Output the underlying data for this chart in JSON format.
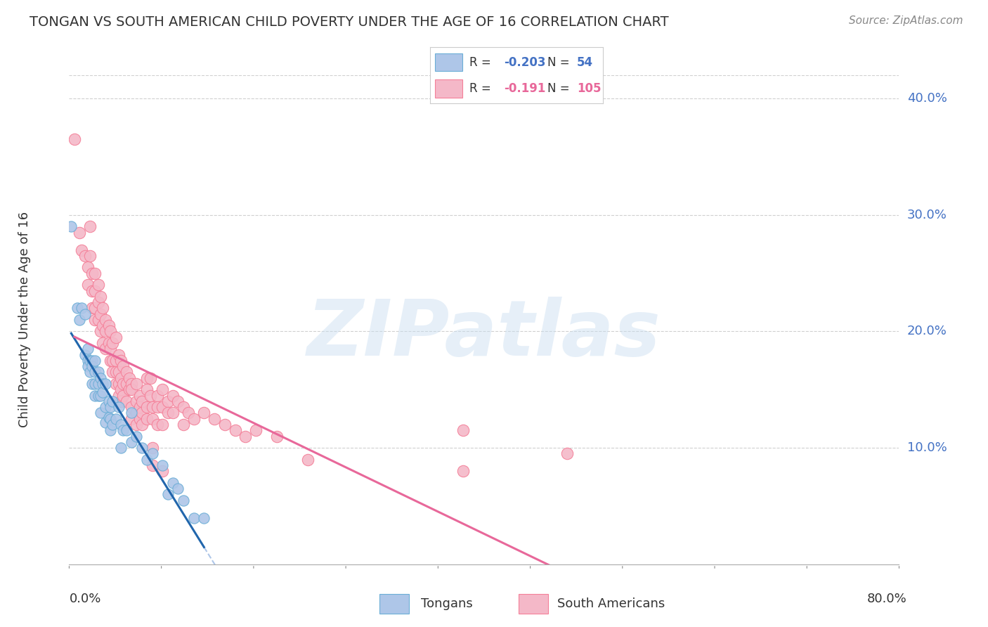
{
  "title": "TONGAN VS SOUTH AMERICAN CHILD POVERTY UNDER THE AGE OF 16 CORRELATION CHART",
  "source": "Source: ZipAtlas.com",
  "ylabel": "Child Poverty Under the Age of 16",
  "ytick_labels": [
    "40.0%",
    "30.0%",
    "20.0%",
    "10.0%"
  ],
  "ytick_values": [
    0.4,
    0.3,
    0.2,
    0.1
  ],
  "xmin": 0.0,
  "xmax": 0.8,
  "ymin": 0.0,
  "ymax": 0.42,
  "watermark_text": "ZIPatlas",
  "tongans_color": "#6baed6",
  "tongans_fill": "#aec6e8",
  "south_americans_color": "#f48099",
  "south_americans_fill": "#f4b8c8",
  "tongans_trendline_color": "#2166ac",
  "south_americans_trendline_color": "#e8689a",
  "dashed_trendline_color": "#aec6e8",
  "background_color": "#ffffff",
  "grid_color": "#d0d0d0",
  "tongans_data": [
    [
      0.002,
      0.29
    ],
    [
      0.008,
      0.22
    ],
    [
      0.01,
      0.21
    ],
    [
      0.012,
      0.22
    ],
    [
      0.015,
      0.215
    ],
    [
      0.015,
      0.18
    ],
    [
      0.018,
      0.185
    ],
    [
      0.018,
      0.175
    ],
    [
      0.018,
      0.17
    ],
    [
      0.02,
      0.175
    ],
    [
      0.02,
      0.165
    ],
    [
      0.022,
      0.175
    ],
    [
      0.022,
      0.17
    ],
    [
      0.022,
      0.155
    ],
    [
      0.025,
      0.175
    ],
    [
      0.025,
      0.165
    ],
    [
      0.025,
      0.155
    ],
    [
      0.025,
      0.145
    ],
    [
      0.028,
      0.165
    ],
    [
      0.028,
      0.155
    ],
    [
      0.028,
      0.145
    ],
    [
      0.03,
      0.16
    ],
    [
      0.03,
      0.145
    ],
    [
      0.03,
      0.13
    ],
    [
      0.032,
      0.155
    ],
    [
      0.032,
      0.148
    ],
    [
      0.035,
      0.155
    ],
    [
      0.035,
      0.135
    ],
    [
      0.035,
      0.122
    ],
    [
      0.038,
      0.14
    ],
    [
      0.038,
      0.126
    ],
    [
      0.04,
      0.135
    ],
    [
      0.04,
      0.125
    ],
    [
      0.04,
      0.115
    ],
    [
      0.042,
      0.14
    ],
    [
      0.042,
      0.12
    ],
    [
      0.045,
      0.125
    ],
    [
      0.048,
      0.135
    ],
    [
      0.05,
      0.12
    ],
    [
      0.05,
      0.1
    ],
    [
      0.052,
      0.115
    ],
    [
      0.055,
      0.115
    ],
    [
      0.06,
      0.13
    ],
    [
      0.06,
      0.105
    ],
    [
      0.065,
      0.11
    ],
    [
      0.07,
      0.1
    ],
    [
      0.075,
      0.09
    ],
    [
      0.08,
      0.095
    ],
    [
      0.09,
      0.085
    ],
    [
      0.095,
      0.06
    ],
    [
      0.1,
      0.07
    ],
    [
      0.105,
      0.065
    ],
    [
      0.11,
      0.055
    ],
    [
      0.12,
      0.04
    ],
    [
      0.13,
      0.04
    ]
  ],
  "south_americans_data": [
    [
      0.005,
      0.365
    ],
    [
      0.01,
      0.285
    ],
    [
      0.012,
      0.27
    ],
    [
      0.015,
      0.265
    ],
    [
      0.018,
      0.255
    ],
    [
      0.018,
      0.24
    ],
    [
      0.02,
      0.29
    ],
    [
      0.02,
      0.265
    ],
    [
      0.022,
      0.25
    ],
    [
      0.022,
      0.235
    ],
    [
      0.022,
      0.22
    ],
    [
      0.025,
      0.25
    ],
    [
      0.025,
      0.235
    ],
    [
      0.025,
      0.22
    ],
    [
      0.025,
      0.21
    ],
    [
      0.028,
      0.24
    ],
    [
      0.028,
      0.225
    ],
    [
      0.028,
      0.21
    ],
    [
      0.03,
      0.23
    ],
    [
      0.03,
      0.215
    ],
    [
      0.03,
      0.2
    ],
    [
      0.032,
      0.22
    ],
    [
      0.032,
      0.205
    ],
    [
      0.032,
      0.19
    ],
    [
      0.035,
      0.21
    ],
    [
      0.035,
      0.2
    ],
    [
      0.035,
      0.185
    ],
    [
      0.038,
      0.205
    ],
    [
      0.038,
      0.19
    ],
    [
      0.04,
      0.2
    ],
    [
      0.04,
      0.185
    ],
    [
      0.04,
      0.175
    ],
    [
      0.042,
      0.19
    ],
    [
      0.042,
      0.175
    ],
    [
      0.042,
      0.165
    ],
    [
      0.045,
      0.195
    ],
    [
      0.045,
      0.175
    ],
    [
      0.045,
      0.165
    ],
    [
      0.045,
      0.155
    ],
    [
      0.048,
      0.18
    ],
    [
      0.048,
      0.165
    ],
    [
      0.048,
      0.155
    ],
    [
      0.048,
      0.145
    ],
    [
      0.05,
      0.175
    ],
    [
      0.05,
      0.16
    ],
    [
      0.05,
      0.15
    ],
    [
      0.05,
      0.14
    ],
    [
      0.052,
      0.17
    ],
    [
      0.052,
      0.155
    ],
    [
      0.052,
      0.145
    ],
    [
      0.055,
      0.165
    ],
    [
      0.055,
      0.155
    ],
    [
      0.055,
      0.14
    ],
    [
      0.058,
      0.16
    ],
    [
      0.058,
      0.15
    ],
    [
      0.06,
      0.155
    ],
    [
      0.06,
      0.15
    ],
    [
      0.06,
      0.135
    ],
    [
      0.06,
      0.125
    ],
    [
      0.065,
      0.155
    ],
    [
      0.065,
      0.14
    ],
    [
      0.065,
      0.13
    ],
    [
      0.065,
      0.12
    ],
    [
      0.068,
      0.145
    ],
    [
      0.068,
      0.135
    ],
    [
      0.068,
      0.125
    ],
    [
      0.07,
      0.14
    ],
    [
      0.07,
      0.13
    ],
    [
      0.07,
      0.12
    ],
    [
      0.075,
      0.16
    ],
    [
      0.075,
      0.15
    ],
    [
      0.075,
      0.135
    ],
    [
      0.075,
      0.125
    ],
    [
      0.078,
      0.16
    ],
    [
      0.078,
      0.145
    ],
    [
      0.08,
      0.135
    ],
    [
      0.08,
      0.125
    ],
    [
      0.08,
      0.1
    ],
    [
      0.08,
      0.085
    ],
    [
      0.085,
      0.145
    ],
    [
      0.085,
      0.135
    ],
    [
      0.085,
      0.12
    ],
    [
      0.09,
      0.15
    ],
    [
      0.09,
      0.135
    ],
    [
      0.09,
      0.12
    ],
    [
      0.09,
      0.08
    ],
    [
      0.095,
      0.14
    ],
    [
      0.095,
      0.13
    ],
    [
      0.1,
      0.145
    ],
    [
      0.1,
      0.13
    ],
    [
      0.105,
      0.14
    ],
    [
      0.11,
      0.135
    ],
    [
      0.11,
      0.12
    ],
    [
      0.115,
      0.13
    ],
    [
      0.12,
      0.125
    ],
    [
      0.13,
      0.13
    ],
    [
      0.14,
      0.125
    ],
    [
      0.15,
      0.12
    ],
    [
      0.16,
      0.115
    ],
    [
      0.17,
      0.11
    ],
    [
      0.18,
      0.115
    ],
    [
      0.2,
      0.11
    ],
    [
      0.23,
      0.09
    ],
    [
      0.38,
      0.115
    ],
    [
      0.38,
      0.08
    ],
    [
      0.48,
      0.095
    ]
  ]
}
